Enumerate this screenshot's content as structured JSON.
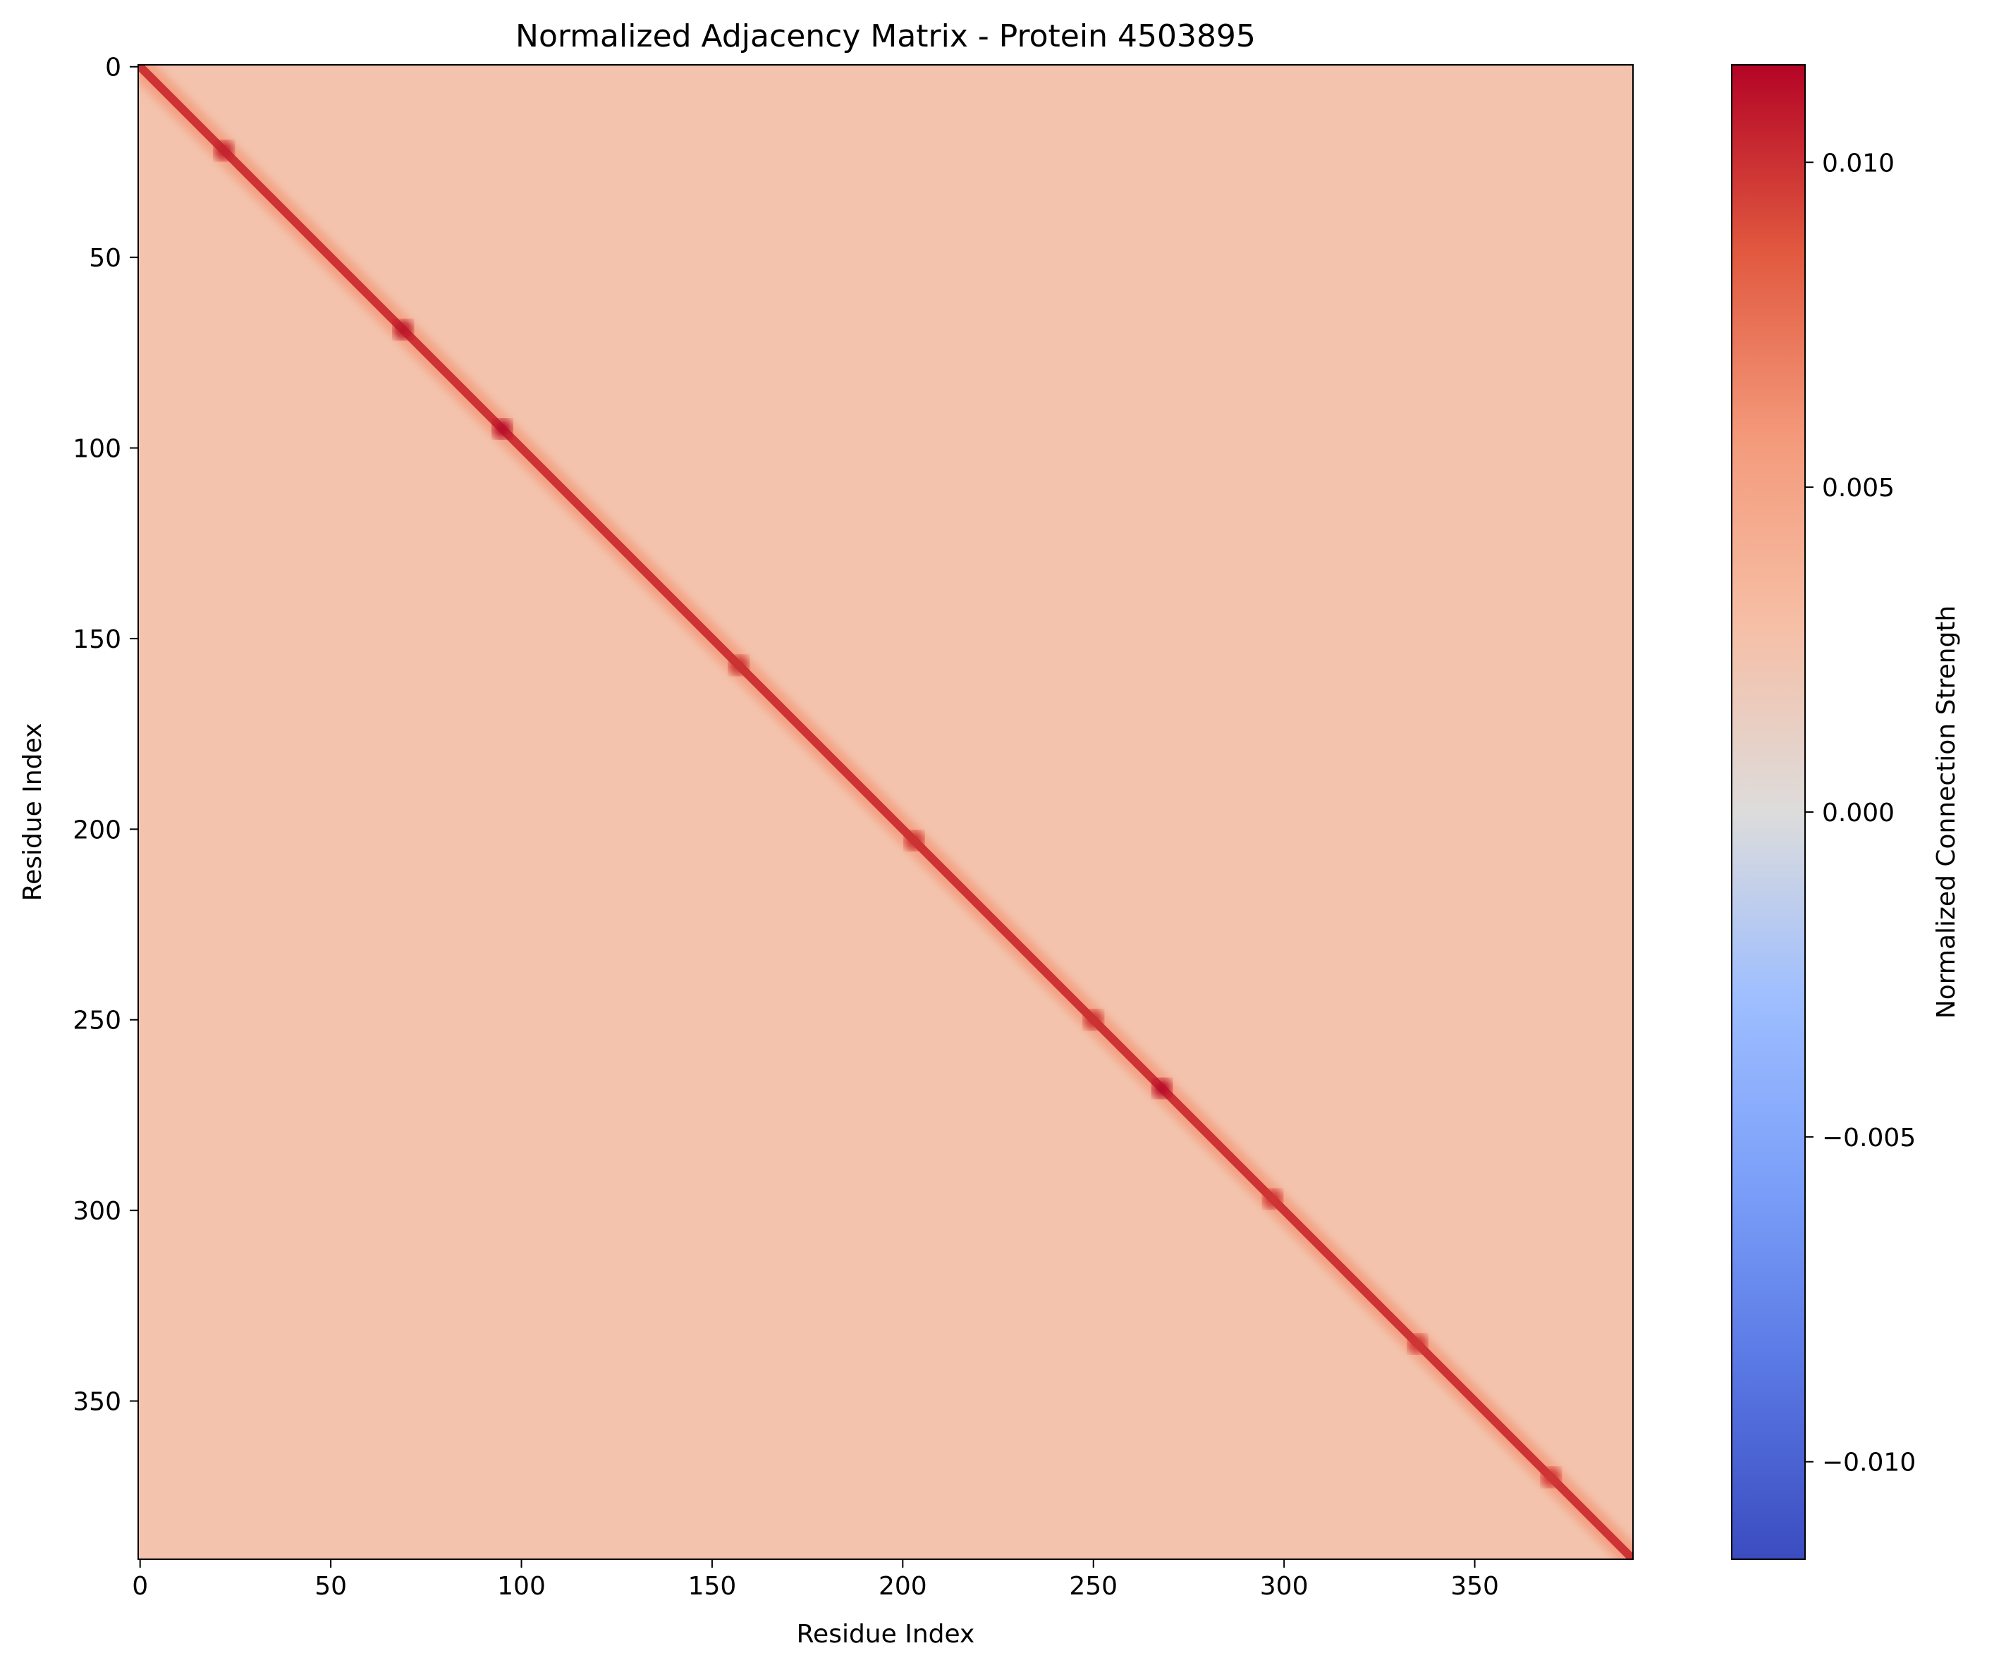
{
  "chart_data": {
    "type": "heatmap",
    "title": "Normalized Adjacency Matrix - Protein 4503895",
    "xlabel": "Residue Index",
    "ylabel": "Residue Index",
    "n_residues": 392,
    "x_ticks": [
      0,
      50,
      100,
      150,
      200,
      250,
      300,
      350
    ],
    "y_ticks": [
      0,
      50,
      100,
      150,
      200,
      250,
      300,
      350
    ],
    "x_tick_labels": [
      "0",
      "50",
      "100",
      "150",
      "200",
      "250",
      "300",
      "350"
    ],
    "y_tick_labels": [
      "0",
      "50",
      "100",
      "150",
      "200",
      "250",
      "300",
      "350"
    ],
    "y_inverted": true,
    "colorbar": {
      "label": "Normalized Connection Strength",
      "colormap": "coolwarm",
      "range": [
        -0.0115,
        0.0115
      ],
      "ticks": [
        0.01,
        0.005,
        0.0,
        -0.005,
        -0.01
      ],
      "tick_labels": [
        "0.010",
        "0.005",
        "0.000",
        "−0.005",
        "−0.010"
      ]
    },
    "background_value": 0.0025,
    "diagonal_peak_value": 0.011,
    "hotspots": [
      {
        "i": 22,
        "j": 22,
        "value": 0.0105
      },
      {
        "i": 69,
        "j": 69,
        "value": 0.011
      },
      {
        "i": 95,
        "j": 95,
        "value": 0.0112
      },
      {
        "i": 157,
        "j": 157,
        "value": 0.01
      },
      {
        "i": 203,
        "j": 203,
        "value": 0.01
      },
      {
        "i": 250,
        "j": 250,
        "value": 0.01
      },
      {
        "i": 268,
        "j": 268,
        "value": 0.0112
      },
      {
        "i": 297,
        "j": 297,
        "value": 0.0098
      },
      {
        "i": 335,
        "j": 335,
        "value": 0.0098
      },
      {
        "i": 370,
        "j": 370,
        "value": 0.0098
      }
    ]
  }
}
